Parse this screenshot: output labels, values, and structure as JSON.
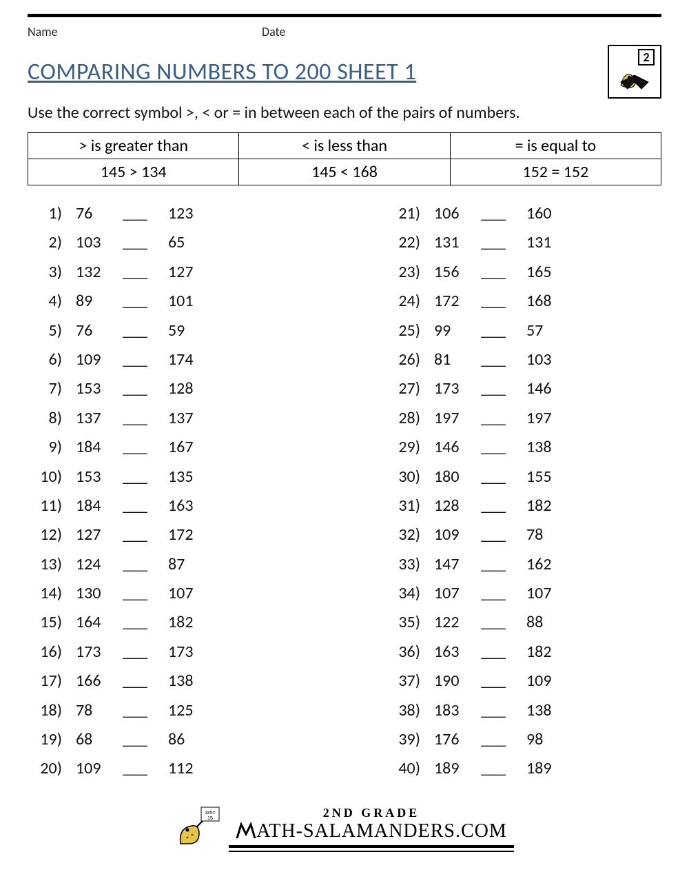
{
  "header": {
    "name_label": "Name",
    "date_label": "Date",
    "grade_badge": "2"
  },
  "title": "COMPARING NUMBERS TO 200 SHEET 1",
  "instructions": "Use the correct symbol >, < or = in between each of the pairs of numbers.",
  "key": {
    "cells": [
      [
        "> is greater than",
        "< is less than",
        "= is equal to"
      ],
      [
        "145 > 134",
        "145 < 168",
        "152 = 152"
      ]
    ]
  },
  "blank": "___",
  "problems_left": [
    {
      "n": "1)",
      "a": "76",
      "b": "123"
    },
    {
      "n": "2)",
      "a": "103",
      "b": "65"
    },
    {
      "n": "3)",
      "a": "132",
      "b": "127"
    },
    {
      "n": "4)",
      "a": "89",
      "b": "101"
    },
    {
      "n": "5)",
      "a": "76",
      "b": "59"
    },
    {
      "n": "6)",
      "a": "109",
      "b": "174"
    },
    {
      "n": "7)",
      "a": "153",
      "b": "128"
    },
    {
      "n": "8)",
      "a": "137",
      "b": "137"
    },
    {
      "n": "9)",
      "a": "184",
      "b": "167"
    },
    {
      "n": "10)",
      "a": "153",
      "b": "135"
    },
    {
      "n": "11)",
      "a": "184",
      "b": "163"
    },
    {
      "n": "12)",
      "a": "127",
      "b": "172"
    },
    {
      "n": "13)",
      "a": "124",
      "b": "87"
    },
    {
      "n": "14)",
      "a": "130",
      "b": "107"
    },
    {
      "n": "15)",
      "a": "164",
      "b": "182"
    },
    {
      "n": "16)",
      "a": "173",
      "b": "173"
    },
    {
      "n": "17)",
      "a": "166",
      "b": "138"
    },
    {
      "n": "18)",
      "a": "78",
      "b": "125"
    },
    {
      "n": "19)",
      "a": "68",
      "b": "86"
    },
    {
      "n": "20)",
      "a": "109",
      "b": "112"
    }
  ],
  "problems_right": [
    {
      "n": "21)",
      "a": "106",
      "b": "160"
    },
    {
      "n": "22)",
      "a": "131",
      "b": "131"
    },
    {
      "n": "23)",
      "a": "156",
      "b": "165"
    },
    {
      "n": "24)",
      "a": "172",
      "b": "168"
    },
    {
      "n": "25)",
      "a": "99",
      "b": "57"
    },
    {
      "n": "26)",
      "a": "81",
      "b": "103"
    },
    {
      "n": "27)",
      "a": "173",
      "b": "146"
    },
    {
      "n": "28)",
      "a": "197",
      "b": "197"
    },
    {
      "n": "29)",
      "a": "146",
      "b": "138"
    },
    {
      "n": "30)",
      "a": "180",
      "b": "155"
    },
    {
      "n": "31)",
      "a": "128",
      "b": "182"
    },
    {
      "n": "32)",
      "a": "109",
      "b": "78"
    },
    {
      "n": "33)",
      "a": "147",
      "b": "162"
    },
    {
      "n": "34)",
      "a": "107",
      "b": "107"
    },
    {
      "n": "35)",
      "a": "122",
      "b": "88"
    },
    {
      "n": "36)",
      "a": "163",
      "b": "182"
    },
    {
      "n": "37)",
      "a": "190",
      "b": "109"
    },
    {
      "n": "38)",
      "a": "183",
      "b": "138"
    },
    {
      "n": "39)",
      "a": "176",
      "b": "98"
    },
    {
      "n": "40)",
      "a": "189",
      "b": "189"
    }
  ],
  "footer": {
    "grade_label": "2ND GRADE",
    "site": "ATH-SALAMANDERS.COM"
  },
  "colors": {
    "title": "#3d5e84",
    "text": "#111111",
    "border": "#000000",
    "background": "#ffffff",
    "salamander": "#e6c34a"
  }
}
